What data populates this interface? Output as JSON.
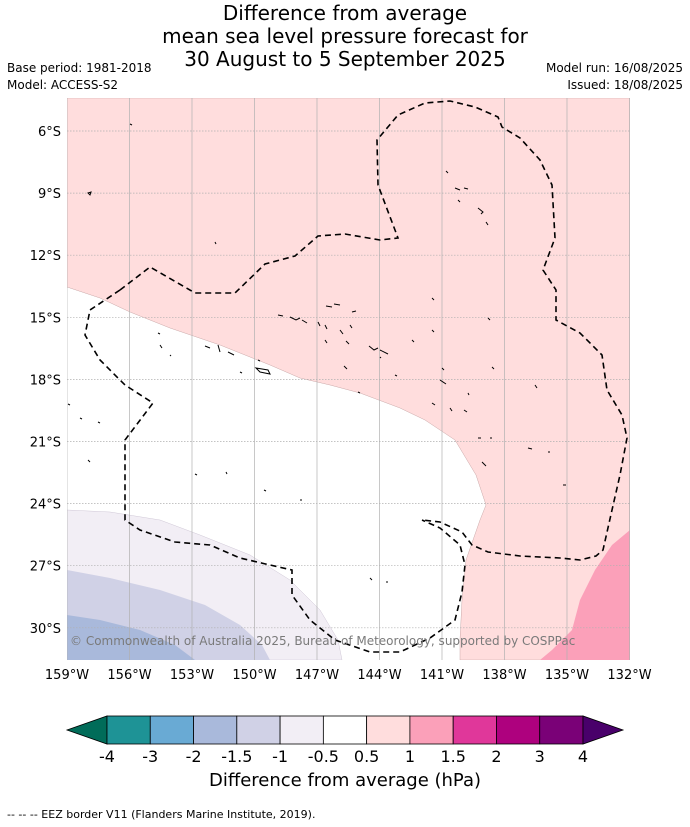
{
  "title_lines": [
    "Difference from average",
    "mean sea level pressure forecast for",
    "30 August to 5 September 2025"
  ],
  "base_period": "Base period: 1981-2018",
  "model": "Model: ACCESS-S2",
  "model_run": "Model run: 16/08/2025",
  "issued": "Issued: 18/08/2025",
  "copyright": "© Commonwealth of Australia 2025, Bureau of Meteorology, supported by COSPPac",
  "lat_labels": [
    "6°S",
    "9°S",
    "12°S",
    "15°S",
    "18°S",
    "21°S",
    "24°S",
    "27°S",
    "30°S"
  ],
  "lon_labels": [
    "159°W",
    "156°W",
    "153°W",
    "150°W",
    "147°W",
    "144°W",
    "141°W",
    "138°W",
    "135°W",
    "132°W"
  ],
  "colorbar": {
    "ticks": [
      "-4",
      "-3",
      "-2",
      "-1.5",
      "-1",
      "-0.5",
      "0.5",
      "1",
      "1.5",
      "2",
      "3",
      "4"
    ],
    "colors": [
      "#1e9396",
      "#69aad4",
      "#a9b9db",
      "#d0d1e6",
      "#f2eef5",
      "#ffffff",
      "#ffdddd",
      "#fba0b9",
      "#e0379a",
      "#ae017e",
      "#7a0177"
    ],
    "under_color": "#016c59",
    "over_color": "#49006a",
    "label": "Difference from average (hPa)"
  },
  "footer": "--  --  -- EEZ border V11 (Flanders Marine Institute, 2019)."
}
